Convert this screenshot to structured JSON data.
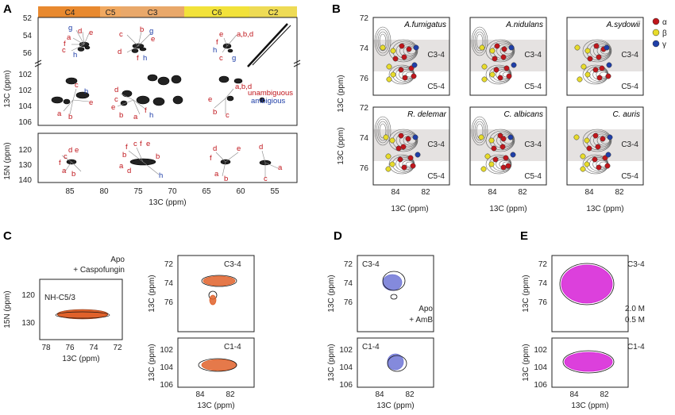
{
  "panels": {
    "A": "A",
    "B": "B",
    "C": "C",
    "D": "D",
    "E": "E"
  },
  "panelA": {
    "bar_labels": [
      "C4",
      "C5",
      "C3",
      "C6",
      "C2"
    ],
    "bar_colors": [
      "#e8892f",
      "#f0a860",
      "#e9a86a",
      "#f2e23a",
      "#eedb55"
    ],
    "y_label_c": "13C (ppm)",
    "y_label_n": "15N (ppm)",
    "x_label": "13C (ppm)",
    "y_ticks_top": [
      "52",
      "54",
      "56"
    ],
    "y_ticks_mid": [
      "102",
      "104",
      "106"
    ],
    "y_ticks_n": [
      "120",
      "130",
      "140"
    ],
    "x_ticks": [
      "85",
      "80",
      "75",
      "70",
      "65",
      "60",
      "55"
    ],
    "legend_red": "unambiguous",
    "legend_blue": "ambigious",
    "labels": {
      "a": "a",
      "b": "b",
      "c": "c",
      "d": "d",
      "e": "e",
      "f": "f",
      "g": "g",
      "h": "h",
      "abd": "a,b,d"
    }
  },
  "panelB": {
    "species": [
      "A.fumigatus",
      "A.nidulans",
      "A.sydowii",
      "R. delemar",
      "C. albicans",
      "C. auris"
    ],
    "region_top": "C3-4",
    "region_bottom": "C5-4",
    "y_ticks": [
      "72",
      "74",
      "76"
    ],
    "x_ticks": [
      "84",
      "82"
    ],
    "y_label": "13C (ppm)",
    "x_label": "13C (ppm)",
    "legend": [
      {
        "label": "α",
        "color": "#c0161c"
      },
      {
        "label": "β",
        "color": "#e8dc2b"
      },
      {
        "label": "γ",
        "color": "#1f3fa8"
      }
    ]
  },
  "panelC": {
    "legend_apo": "Apo",
    "legend_drug": "+ Caspofungin",
    "drug_color": "#e0612a",
    "inset_label": "NH-C5/3",
    "n_ticks": [
      "120",
      "130"
    ],
    "n_x_ticks": [
      "78",
      "76",
      "74",
      "72"
    ],
    "n_y_label": "15N (ppm)",
    "n_x_label": "13C (ppm)",
    "c34_label": "C3-4",
    "c14_label": "C1-4",
    "c34_ticks": [
      "72",
      "74",
      "76"
    ],
    "c14_ticks": [
      "102",
      "104",
      "106"
    ],
    "x_ticks": [
      "84",
      "82"
    ],
    "y_label": "13C (ppm)",
    "x_label": "13C (ppm)"
  },
  "panelD": {
    "legend_apo": "Apo",
    "legend_drug": "+ AmB",
    "drug_color": "#6f75d6",
    "c34_label": "C3-4",
    "c14_label": "C1-4",
    "c34_ticks": [
      "72",
      "74",
      "76"
    ],
    "c14_ticks": [
      "102",
      "104",
      "106"
    ],
    "x_ticks": [
      "84",
      "82"
    ],
    "y_label": "13C (ppm)",
    "x_label": "13C (ppm)"
  },
  "panelE": {
    "legend_high": "2.0 M",
    "legend_low": "0.5 M",
    "high_color": "#d61fd6",
    "c34_label": "C3-4",
    "c14_label": "C1-4",
    "c34_ticks": [
      "72",
      "74",
      "76"
    ],
    "c14_ticks": [
      "102",
      "104",
      "106"
    ],
    "x_ticks": [
      "84",
      "82"
    ],
    "y_label": "13C (ppm)",
    "x_label": "13C (ppm)"
  }
}
